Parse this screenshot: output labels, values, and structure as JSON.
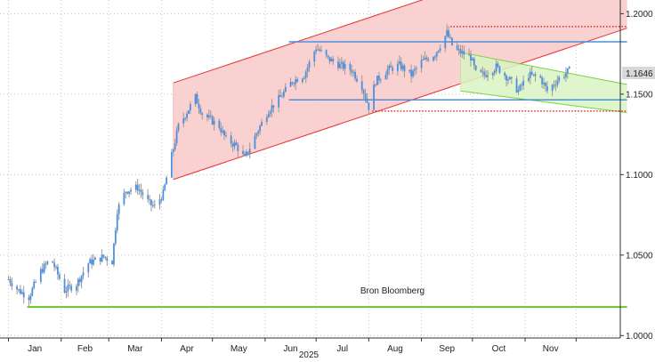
{
  "chart_data": {
    "type": "candlestick",
    "title": "",
    "source": "Bron Bloomberg",
    "last_price_label": "1.1646",
    "year_label": "2025",
    "x_axis": {
      "labels": [
        "Jan",
        "Feb",
        "Mar",
        "Apr",
        "May",
        "Jun",
        "Jul",
        "Aug",
        "Sep",
        "Oct",
        "Nov"
      ]
    },
    "y_axis": {
      "position": "right",
      "range": [
        0.9985,
        1.2085
      ],
      "ticks": [
        "1.0000",
        "1.0500",
        "1.1000",
        "1.1500",
        "1.2000"
      ]
    },
    "grid": true,
    "series": {
      "anchors": [
        [
          "2025-01-01",
          1.035
        ],
        [
          "2025-01-07",
          1.028
        ],
        [
          "2025-01-13",
          1.024
        ],
        [
          "2025-01-20",
          1.04
        ],
        [
          "2025-01-26",
          1.048
        ],
        [
          "2025-02-03",
          1.028
        ],
        [
          "2025-02-10",
          1.032
        ],
        [
          "2025-02-17",
          1.045
        ],
        [
          "2025-02-26",
          1.049
        ],
        [
          "2025-03-03",
          1.046
        ],
        [
          "2025-03-06",
          1.078
        ],
        [
          "2025-03-11",
          1.09
        ],
        [
          "2025-03-18",
          1.092
        ],
        [
          "2025-03-25",
          1.082
        ],
        [
          "2025-03-28",
          1.08
        ],
        [
          "2025-04-02",
          1.088
        ],
        [
          "2025-04-04",
          1.098
        ],
        [
          "2025-04-11",
          1.13
        ],
        [
          "2025-04-21",
          1.148
        ],
        [
          "2025-04-25",
          1.138
        ],
        [
          "2025-05-05",
          1.13
        ],
        [
          "2025-05-09",
          1.122
        ],
        [
          "2025-05-15",
          1.118
        ],
        [
          "2025-05-20",
          1.11
        ],
        [
          "2025-05-28",
          1.128
        ],
        [
          "2025-06-03",
          1.14
        ],
        [
          "2025-06-10",
          1.148
        ],
        [
          "2025-06-17",
          1.158
        ],
        [
          "2025-06-24",
          1.162
        ],
        [
          "2025-07-01",
          1.179
        ],
        [
          "2025-07-08",
          1.172
        ],
        [
          "2025-07-15",
          1.168
        ],
        [
          "2025-07-22",
          1.165
        ],
        [
          "2025-07-28",
          1.155
        ],
        [
          "2025-08-01",
          1.142
        ],
        [
          "2025-08-05",
          1.158
        ],
        [
          "2025-08-12",
          1.165
        ],
        [
          "2025-08-19",
          1.168
        ],
        [
          "2025-08-26",
          1.162
        ],
        [
          "2025-09-01",
          1.17
        ],
        [
          "2025-09-09",
          1.175
        ],
        [
          "2025-09-16",
          1.188
        ],
        [
          "2025-09-20",
          1.178
        ],
        [
          "2025-09-24",
          1.176
        ],
        [
          "2025-09-30",
          1.173
        ],
        [
          "2025-10-03",
          1.163
        ],
        [
          "2025-10-08",
          1.162
        ],
        [
          "2025-10-15",
          1.167
        ],
        [
          "2025-10-22",
          1.16
        ],
        [
          "2025-10-28",
          1.152
        ],
        [
          "2025-11-03",
          1.162
        ],
        [
          "2025-11-10",
          1.16
        ],
        [
          "2025-11-14",
          1.152
        ],
        [
          "2025-11-21",
          1.16
        ],
        [
          "2025-11-27",
          1.1646
        ]
      ]
    },
    "annotations": {
      "red_channel": {
        "lower": [
          [
            "2025-04-08",
            1.097
          ],
          [
            "2025-12-31",
            1.191
          ]
        ],
        "upper": [
          [
            "2025-04-08",
            1.157
          ],
          [
            "2025-12-31",
            1.251
          ]
        ],
        "color": "#e63030",
        "fill": "#f8c9c9"
      },
      "green_channel": {
        "upper": [
          [
            "2025-09-24",
            1.176
          ],
          [
            "2025-12-31",
            1.156
          ]
        ],
        "lower": [
          [
            "2025-09-24",
            1.152
          ],
          [
            "2025-12-31",
            1.1385
          ]
        ],
        "color": "#7ad03a",
        "fill": "#d9f5c4"
      },
      "blue_lines": [
        {
          "from": "2025-06-15",
          "to": "2025-12-31",
          "y": 1.1825
        },
        {
          "from": "2025-06-15",
          "to": "2025-12-31",
          "y": 1.1465
        }
      ],
      "red_dotted_lines": [
        {
          "from": "2025-09-18",
          "to": "2025-12-31",
          "y": 1.192
        },
        {
          "from": "2025-08-03",
          "to": "2025-12-31",
          "y": 1.1395
        }
      ],
      "green_horizontal": {
        "from": "2025-01-12",
        "to": "2025-12-31",
        "y": 1.0178,
        "color": "#6cc42a"
      },
      "last_price_color": "#d8d8d8"
    },
    "colors": {
      "candle": "#4a90e2",
      "wick": "#9a9a9a"
    }
  }
}
